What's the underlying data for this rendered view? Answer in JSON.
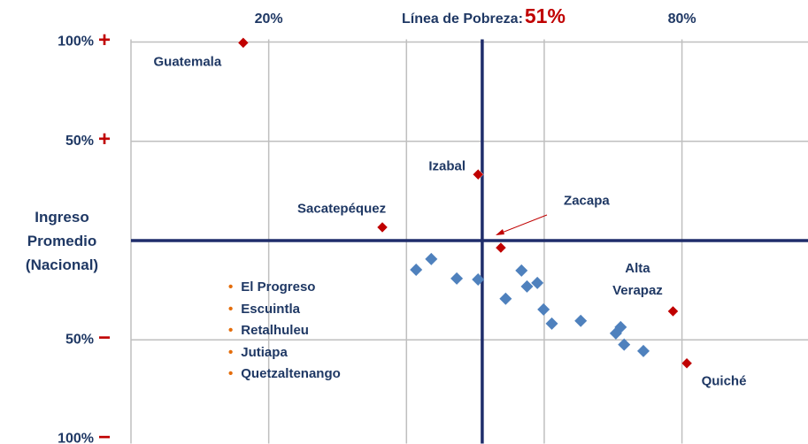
{
  "chart_data": {
    "type": "scatter",
    "poverty_line": {
      "label": "Línea de Pobreza:",
      "value": 51,
      "value_label": "51%"
    },
    "y_label": "Ingreso Promedio (Nacional)",
    "xlim": [
      0,
      98.3
    ],
    "ylim": [
      -100,
      100
    ],
    "xticks": [
      {
        "value": 20,
        "label": "20%"
      },
      {
        "value": 40,
        "label": null
      },
      {
        "value": 60,
        "label": null
      },
      {
        "value": 80,
        "label": "80%"
      }
    ],
    "yticks": [
      {
        "value": 100,
        "label": "100%",
        "sign": "+"
      },
      {
        "value": 50,
        "label": "50%",
        "sign": "+"
      },
      {
        "value": -50,
        "label": "50%",
        "sign": "−"
      },
      {
        "value": -100,
        "label": "100%",
        "sign": "−"
      }
    ],
    "grid": true,
    "series": [
      {
        "color": "#c00000",
        "labels": [
          "Guatemala",
          "Sacatepéquez",
          "Izabal",
          "Zacapa",
          "Alta Verapaz",
          "Quiché"
        ],
        "x": [
          16.3,
          36.5,
          50.4,
          53.7,
          78.7,
          80.7
        ],
        "values": [
          99.6,
          6.7,
          33.3,
          -3.6,
          -35.6,
          -61.8
        ]
      },
      {
        "color": "#4f81bd",
        "x": [
          41.4,
          43.6,
          47.3,
          50.4,
          54.4,
          56.7,
          57.5,
          59.0,
          59.9,
          61.1,
          65.3,
          70.4,
          71.1,
          71.6,
          74.4
        ],
        "values": [
          -14.7,
          -9.3,
          -19.1,
          -19.6,
          -29.3,
          -15.1,
          -23.1,
          -21.3,
          -34.7,
          -41.8,
          -40.4,
          -46.7,
          -43.6,
          -52.4,
          -55.6
        ]
      }
    ],
    "list": [
      "El Progreso",
      "Escuintla",
      "Retalhuleu",
      "Jutiapa",
      "Quetzaltenango"
    ]
  }
}
